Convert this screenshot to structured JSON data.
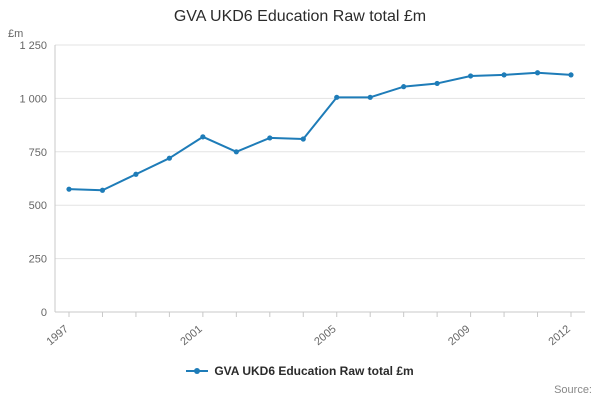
{
  "title": "GVA UKD6 Education Raw total £m",
  "unit_label": "£m",
  "source_label": "Source:",
  "legend_label": "GVA UKD6 Education Raw total £m",
  "chart_data": {
    "type": "line",
    "title": "GVA UKD6 Education Raw total £m",
    "xlabel": "",
    "ylabel": "£m",
    "x": [
      1997,
      1998,
      1999,
      2000,
      2001,
      2002,
      2003,
      2004,
      2005,
      2006,
      2007,
      2008,
      2009,
      2010,
      2011,
      2012
    ],
    "series": [
      {
        "name": "GVA UKD6 Education Raw total £m",
        "values": [
          575,
          570,
          645,
          720,
          820,
          750,
          815,
          810,
          1005,
          1005,
          1055,
          1070,
          1105,
          1110,
          1120,
          1110
        ]
      }
    ],
    "ylim": [
      0,
      1250
    ],
    "yticks": [
      0,
      250,
      500,
      750,
      1000,
      1250
    ],
    "ytick_labels": [
      "0",
      "250",
      "500",
      "750",
      "1 000",
      "1 250"
    ],
    "xtick_labeled_years": [
      1997,
      2001,
      2005,
      2009,
      2012
    ],
    "legend_position": "bottom",
    "grid": true,
    "colors": {
      "line": "#1e7cb8",
      "grid": "#e3e3e3",
      "axis": "#c8c8c8",
      "tick_text": "#666666"
    }
  }
}
